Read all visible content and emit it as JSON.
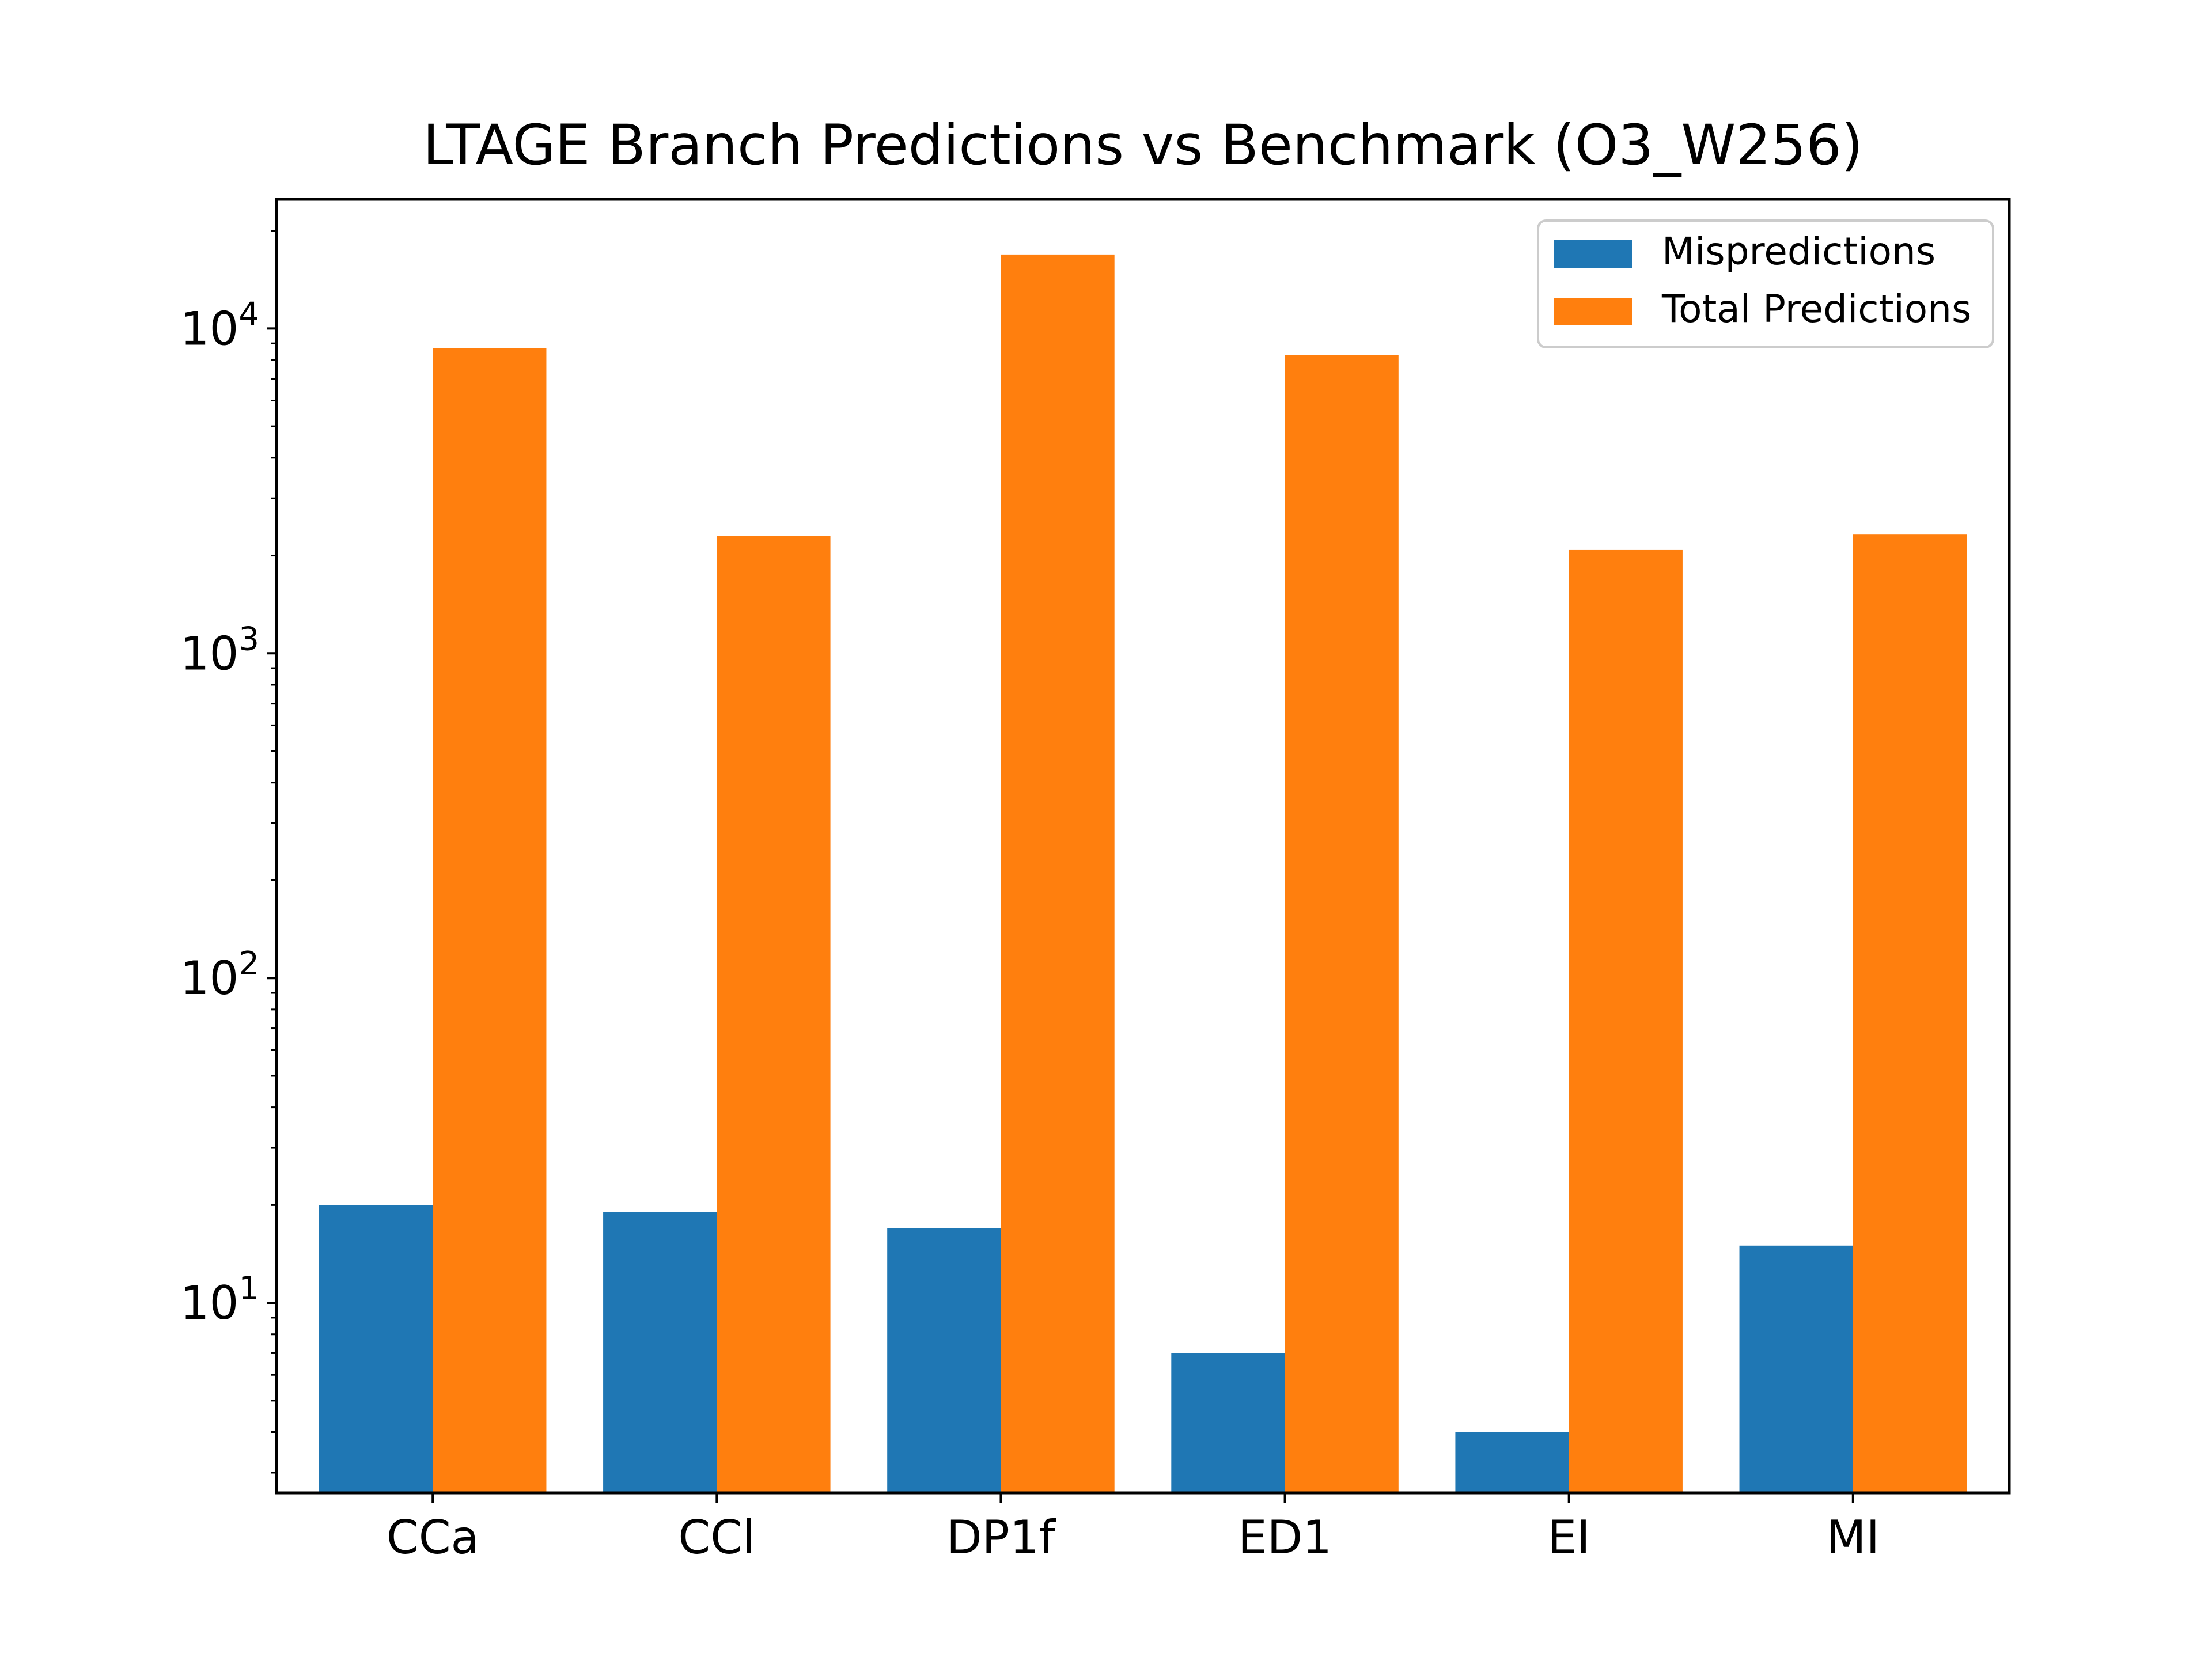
{
  "chart_data": {
    "type": "bar",
    "title": "LTAGE Branch Predictions vs Benchmark (O3_W256)",
    "xlabel": "",
    "ylabel": "",
    "yscale": "log",
    "ylim": [
      2.6,
      25000
    ],
    "yticks": [
      {
        "value": 10,
        "base": "10",
        "exp": "1"
      },
      {
        "value": 100,
        "base": "10",
        "exp": "2"
      },
      {
        "value": 1000,
        "base": "10",
        "exp": "3"
      },
      {
        "value": 10000,
        "base": "10",
        "exp": "4"
      }
    ],
    "grid": false,
    "legend": "top-right",
    "categories": [
      "CCa",
      "CCl",
      "DP1f",
      "ED1",
      "EI",
      "MI"
    ],
    "series": [
      {
        "name": "Mispredictions",
        "color": "#1f77b4",
        "values": [
          20,
          19,
          17,
          7,
          4,
          15
        ]
      },
      {
        "name": "Total Predictions",
        "color": "#ff7f0e",
        "values": [
          8700,
          2300,
          16900,
          8300,
          2080,
          2320
        ]
      }
    ]
  }
}
